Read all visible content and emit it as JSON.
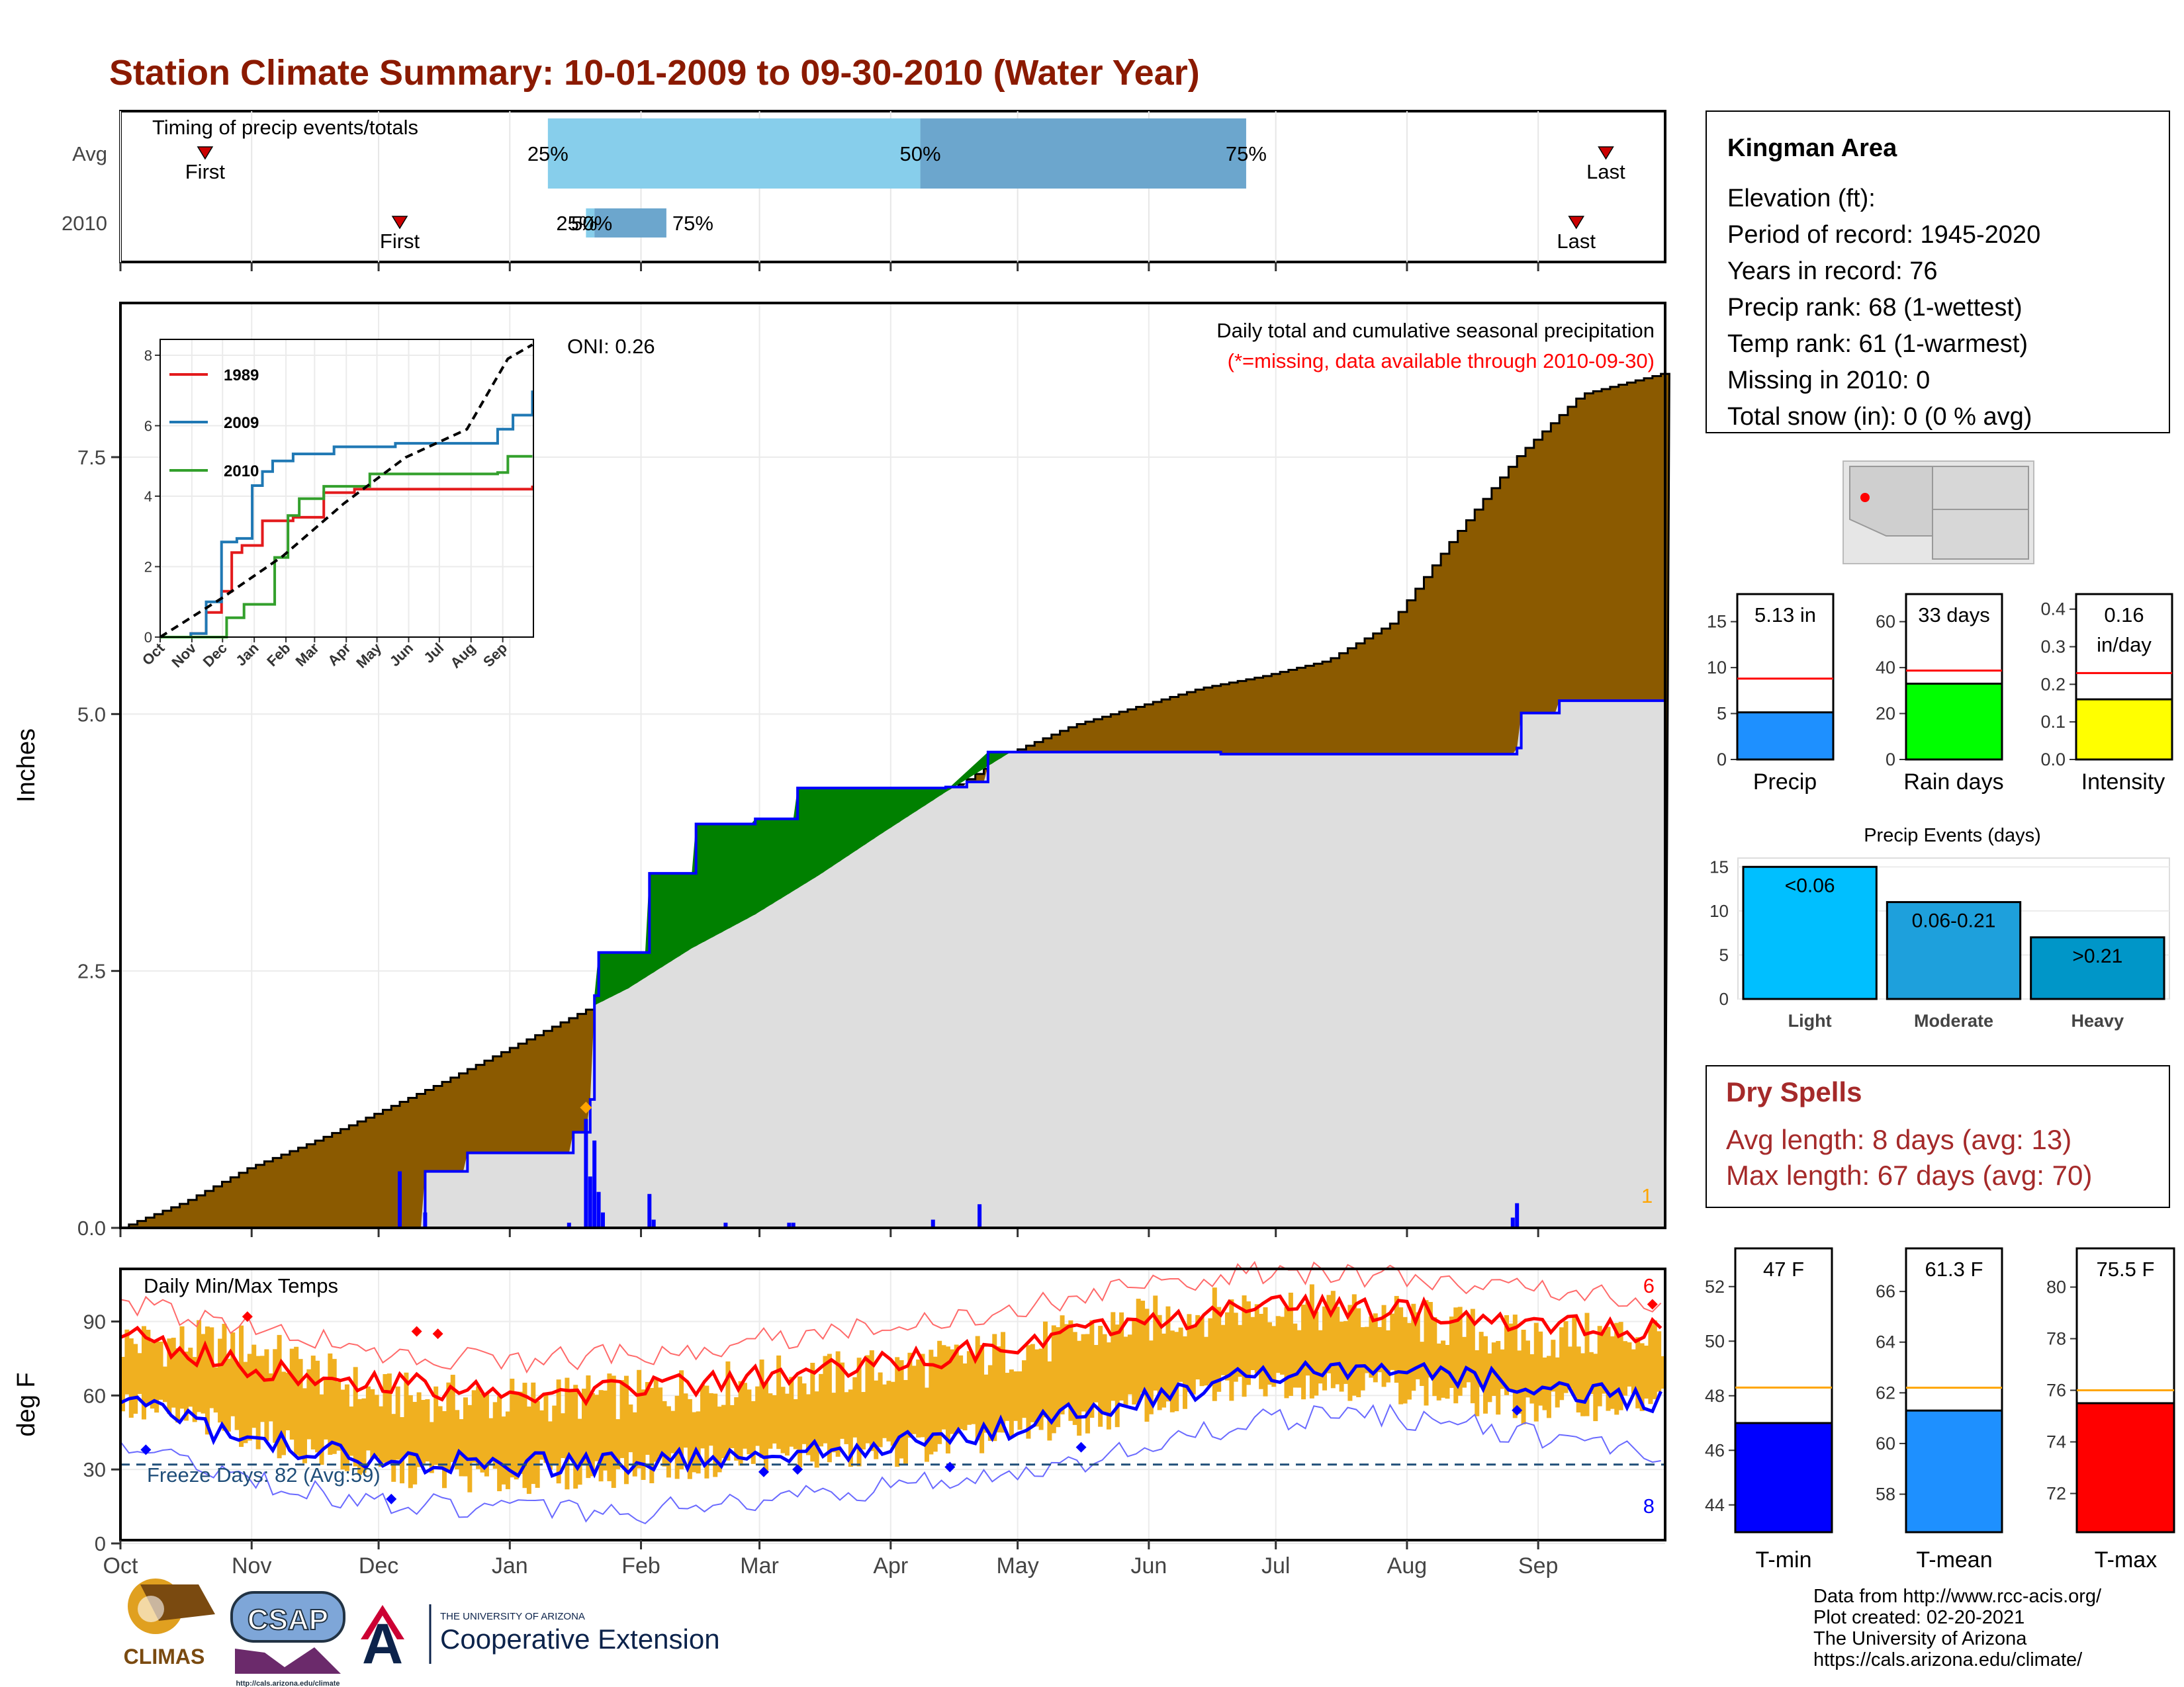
{
  "page": {
    "title": "Station Climate Summary: 10-01-2009 to 09-30-2010 (Water Year)",
    "footer": [
      "Data from http://www.rcc-acis.org/",
      "Plot created: 02-20-2021",
      "The University of Arizona",
      "https://cals.arizona.edu/climate/"
    ],
    "logos": {
      "climas": "CLIMAS",
      "csap": "CSAP",
      "csap_url": "http://cals.arizona.edu/climate",
      "ua_small": "THE UNIVERSITY OF ARIZONA",
      "ua_large": "Cooperative Extension",
      "ua_letter": "A"
    },
    "colors": {
      "title": "#8B1A00",
      "cumulative_avg_fill": "#8B5A00",
      "surplus_fill": "#008000",
      "current_line": "#0000FF",
      "temp_bars": "#F0B020",
      "dry_spells": "#A52A2A"
    }
  },
  "station": {
    "name": "Kingman Area",
    "lines": [
      "Elevation (ft):",
      "Period of record: 1945-2020",
      "Years in record: 76",
      "Precip rank: 68 (1-wettest)",
      "Temp rank: 61 (1-warmest)",
      "Missing in 2010: 0",
      "Total snow (in): 0 (0 % avg)"
    ]
  },
  "dry_spells": {
    "title": "Dry Spells",
    "avg": "Avg length: 8 days (avg: 13)",
    "max": "Max length: 67 days (avg: 70)"
  },
  "chart_data": [
    {
      "id": "timing",
      "type": "bar",
      "title": "Timing of precip events/totals",
      "x_ticks": [
        "Oct",
        "Nov",
        "Dec",
        "Jan",
        "Feb",
        "Mar",
        "Apr",
        "May",
        "Jun",
        "Jul",
        "Aug",
        "Sep"
      ],
      "rows": [
        {
          "label": "Avg",
          "first_day": 20,
          "last_day": 351,
          "p25_day": 101,
          "p50_day": 189,
          "p75_day": 266,
          "labels": [
            "First",
            "25%",
            "50%",
            "75%",
            "Last"
          ]
        },
        {
          "label": "2010",
          "first_day": 66,
          "last_day": 344,
          "p25_day": 110,
          "p50_day": 112,
          "p75_day": 129,
          "labels": [
            "First",
            "25%",
            "50%",
            "75%",
            "Last"
          ]
        }
      ]
    },
    {
      "id": "cumulative",
      "type": "area",
      "title": "Daily total and cumulative seasonal precipitation",
      "subtitle": "(*=missing, data available through 2010-09-30)",
      "ylabel": "Inches",
      "ylim": [
        0,
        9
      ],
      "y_ticks": [
        "0.0",
        "2.5",
        "5.0",
        "7.5"
      ],
      "x_ticks": [
        "Oct",
        "Nov",
        "Dec",
        "Jan",
        "Feb",
        "Mar",
        "Apr",
        "May",
        "Jun",
        "Jul",
        "Aug",
        "Sep"
      ],
      "oni": "ONI: 0.26",
      "corner_label": "1",
      "avg_cumulative": {
        "day": [
          0,
          15,
          30,
          45,
          60,
          75,
          90,
          105,
          120,
          135,
          150,
          165,
          180,
          195,
          210,
          225,
          240,
          255,
          270,
          285,
          300,
          315,
          330,
          345,
          364
        ],
        "inches": [
          0.0,
          0.25,
          0.58,
          0.83,
          1.11,
          1.4,
          1.71,
          2.02,
          2.33,
          2.72,
          3.05,
          3.43,
          3.84,
          4.24,
          4.62,
          4.89,
          5.07,
          5.25,
          5.37,
          5.52,
          5.88,
          6.73,
          7.51,
          8.11,
          8.31
        ]
      },
      "current_cumulative": {
        "day": [
          0,
          65,
          72,
          82,
          107,
          110,
          111,
          112,
          113,
          125,
          136,
          150,
          160,
          195,
          200,
          205,
          260,
          330,
          331,
          340,
          364
        ],
        "inches": [
          0.0,
          0.0,
          0.55,
          0.73,
          0.93,
          0.93,
          1.25,
          2.26,
          2.68,
          3.45,
          3.93,
          3.98,
          4.28,
          4.29,
          4.34,
          4.63,
          4.61,
          4.67,
          5.01,
          5.13,
          5.13
        ]
      },
      "daily": {
        "day": [
          66,
          72,
          106,
          110,
          111,
          112,
          113,
          114,
          125,
          126,
          143,
          158,
          159,
          192,
          203,
          329,
          330
        ],
        "inches": [
          0.55,
          0.15,
          0.05,
          1.06,
          0.5,
          0.85,
          0.35,
          0.15,
          0.33,
          0.08,
          0.05,
          0.05,
          0.05,
          0.08,
          0.23,
          0.1,
          0.24
        ]
      },
      "marker_day": 110,
      "marker_value": 1.17
    },
    {
      "id": "inset",
      "type": "line",
      "ylim": [
        0,
        8
      ],
      "y_ticks": [
        "0",
        "2",
        "4",
        "6",
        "8"
      ],
      "x_ticks": [
        "Oct",
        "Nov",
        "Dec",
        "Jan",
        "Feb",
        "Mar",
        "Apr",
        "May",
        "Jun",
        "Jul",
        "Aug",
        "Sep"
      ],
      "series": [
        {
          "name": "1989",
          "color": "#E31A1C",
          "values": [
            [
              0,
              0
            ],
            [
              30,
              0.1
            ],
            [
              45,
              0.7
            ],
            [
              60,
              1.3
            ],
            [
              70,
              2.4
            ],
            [
              80,
              2.6
            ],
            [
              100,
              3.3
            ],
            [
              130,
              3.4
            ],
            [
              160,
              4.1
            ],
            [
              190,
              4.2
            ],
            [
              364,
              4.3
            ]
          ]
        },
        {
          "name": "2009",
          "color": "#1F78B4",
          "values": [
            [
              0,
              0
            ],
            [
              30,
              0.1
            ],
            [
              45,
              1.0
            ],
            [
              60,
              2.7
            ],
            [
              75,
              2.8
            ],
            [
              90,
              4.3
            ],
            [
              100,
              4.7
            ],
            [
              110,
              5.0
            ],
            [
              130,
              5.2
            ],
            [
              170,
              5.4
            ],
            [
              230,
              5.5
            ],
            [
              330,
              5.9
            ],
            [
              345,
              6.3
            ],
            [
              364,
              7.0
            ]
          ]
        },
        {
          "name": "2010",
          "color": "#33A02C",
          "values": [
            [
              0,
              0
            ],
            [
              65,
              0.55
            ],
            [
              82,
              0.93
            ],
            [
              107,
              0.93
            ],
            [
              112,
              2.26
            ],
            [
              125,
              3.45
            ],
            [
              136,
              3.93
            ],
            [
              160,
              4.28
            ],
            [
              205,
              4.63
            ],
            [
              330,
              4.67
            ],
            [
              340,
              5.13
            ],
            [
              364,
              5.13
            ]
          ]
        },
        {
          "name": "avg",
          "color": "#000000",
          "dash": true,
          "values": [
            [
              0,
              0
            ],
            [
              60,
              1.1
            ],
            [
              120,
              2.3
            ],
            [
              180,
              3.8
            ],
            [
              240,
              5.1
            ],
            [
              300,
              5.9
            ],
            [
              340,
              7.9
            ],
            [
              364,
              8.3
            ]
          ]
        }
      ]
    },
    {
      "id": "temps",
      "type": "line",
      "title": "Daily Min/Max Temps",
      "ylabel": "deg F",
      "ylim": [
        0,
        110
      ],
      "y_ticks": [
        "0",
        "30",
        "60",
        "90"
      ],
      "x_ticks": [
        "Oct",
        "Nov",
        "Dec",
        "Jan",
        "Feb",
        "Mar",
        "Apr",
        "May",
        "Jun",
        "Jul",
        "Aug",
        "Sep"
      ],
      "freeze_label": "Freeze Days: 82 (Avg:59)",
      "freeze_level": 32,
      "record_high_count": "6",
      "record_low_count": "8",
      "avg_max": {
        "day": [
          0,
          30,
          60,
          90,
          120,
          150,
          180,
          210,
          240,
          270,
          300,
          330,
          364
        ],
        "temp": [
          84,
          72,
          65,
          61,
          62,
          67,
          73,
          80,
          88,
          96,
          95,
          91,
          86
        ]
      },
      "avg_min": {
        "day": [
          0,
          30,
          60,
          90,
          120,
          150,
          180,
          210,
          240,
          270,
          300,
          330,
          364
        ],
        "temp": [
          57,
          42,
          34,
          32,
          33,
          35,
          40,
          47,
          58,
          69,
          69,
          66,
          58
        ]
      },
      "record_max": {
        "day": [
          0,
          30,
          60,
          90,
          120,
          150,
          180,
          210,
          240,
          270,
          300,
          330,
          364
        ],
        "temp": [
          98,
          88,
          78,
          74,
          76,
          82,
          88,
          95,
          104,
          110,
          108,
          104,
          98
        ]
      },
      "record_min": {
        "day": [
          0,
          30,
          60,
          90,
          120,
          150,
          180,
          210,
          240,
          270,
          300,
          330,
          364
        ],
        "temp": [
          40,
          25,
          17,
          14,
          12,
          18,
          22,
          28,
          38,
          50,
          52,
          45,
          36
        ]
      },
      "obs_high": {
        "day": [
          0,
          30,
          60,
          90,
          120,
          150,
          180,
          210,
          240,
          270,
          300,
          330,
          364
        ],
        "temp": [
          82,
          80,
          60,
          58,
          60,
          66,
          70,
          78,
          90,
          97,
          92,
          83,
          85
        ]
      },
      "obs_low": {
        "day": [
          0,
          30,
          60,
          90,
          120,
          150,
          180,
          210,
          240,
          270,
          300,
          330,
          364
        ],
        "temp": [
          56,
          45,
          30,
          26,
          30,
          35,
          37,
          44,
          55,
          66,
          64,
          55,
          58
        ]
      }
    },
    {
      "id": "precip_total",
      "type": "bar",
      "categories": [
        "Precip"
      ],
      "values": [
        5.13
      ],
      "value_label": "5.13 in",
      "avg": 8.8,
      "ylim": [
        0,
        18
      ],
      "y_ticks": [
        "0",
        "5",
        "10",
        "15"
      ],
      "color": "#1E90FF"
    },
    {
      "id": "rain_days",
      "type": "bar",
      "categories": [
        "Rain days"
      ],
      "values": [
        33
      ],
      "value_label": "33 days",
      "avg": 38.7,
      "ylim": [
        0,
        72
      ],
      "y_ticks": [
        "0",
        "20",
        "40",
        "60"
      ],
      "color": "#00FF00"
    },
    {
      "id": "intensity",
      "type": "bar",
      "categories": [
        "Intensity"
      ],
      "values": [
        0.16
      ],
      "value_label": [
        "0.16",
        "in/day"
      ],
      "avg": 0.23,
      "ylim": [
        0,
        0.44
      ],
      "y_ticks": [
        "0.0",
        "0.1",
        "0.2",
        "0.3",
        "0.4"
      ],
      "color": "#FFFF00"
    },
    {
      "id": "precip_events",
      "type": "bar",
      "title": "Precip Events (days)",
      "categories": [
        "Light",
        "Moderate",
        "Heavy"
      ],
      "values": [
        15,
        11,
        7
      ],
      "value_labels": [
        "<0.06",
        "0.06-0.21",
        ">0.21"
      ],
      "ylim": [
        0,
        16
      ],
      "y_ticks": [
        "0",
        "5",
        "10",
        "15"
      ],
      "colors": [
        "#00BFFF",
        "#1EA0DC",
        "#0096C8"
      ]
    },
    {
      "id": "t_min",
      "type": "bar",
      "categories": [
        "T-min"
      ],
      "values": [
        47
      ],
      "value_label": "47 F",
      "avg": 48.3,
      "ylim": [
        43,
        53.4
      ],
      "y_ticks": [
        "44",
        "46",
        "48",
        "50",
        "52"
      ],
      "color": "#0000FF"
    },
    {
      "id": "t_mean",
      "type": "bar",
      "categories": [
        "T-mean"
      ],
      "values": [
        61.3
      ],
      "value_label": "61.3 F",
      "avg": 62.2,
      "ylim": [
        56.5,
        67.7
      ],
      "y_ticks": [
        "58",
        "60",
        "62",
        "64",
        "66"
      ],
      "color": "#1E90FF"
    },
    {
      "id": "t_max",
      "type": "bar",
      "categories": [
        "T-max"
      ],
      "values": [
        75.5
      ],
      "value_label": "75.5 F",
      "avg": 76.0,
      "ylim": [
        70.5,
        81.5
      ],
      "y_ticks": [
        "72",
        "74",
        "76",
        "78",
        "80"
      ],
      "color": "#FF0000"
    }
  ]
}
